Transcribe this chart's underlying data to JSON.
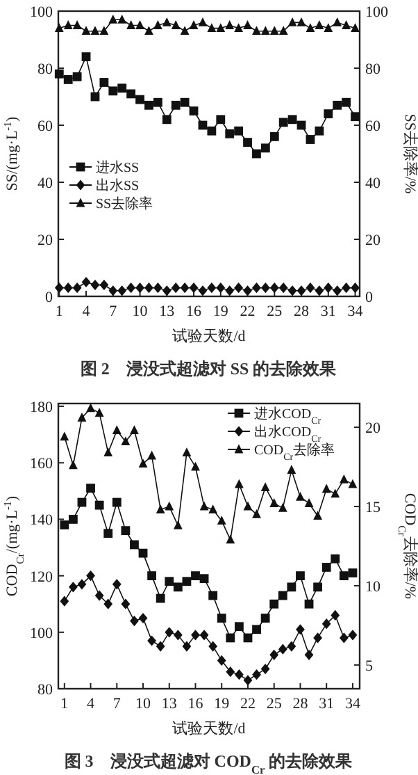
{
  "chart_data": [
    {
      "type": "line",
      "title": "图 2　浸没式超滤对 SS 的去除效果",
      "xlabel": "试验天数/d",
      "ylabel": "SS/(mg·L$^{-1}$)",
      "y2label": "SS去除率/%",
      "x": [
        1,
        2,
        3,
        4,
        5,
        6,
        7,
        8,
        9,
        10,
        11,
        12,
        13,
        14,
        15,
        16,
        17,
        18,
        19,
        20,
        21,
        22,
        23,
        24,
        25,
        26,
        27,
        28,
        29,
        30,
        31,
        32,
        33,
        34
      ],
      "xlim": [
        0.9,
        34.5
      ],
      "xticks": [
        1,
        4,
        7,
        10,
        13,
        16,
        19,
        22,
        25,
        28,
        31,
        34
      ],
      "ylim": [
        0,
        100
      ],
      "yticks": [
        0,
        20,
        40,
        60,
        80,
        100
      ],
      "y2lim": [
        0,
        100
      ],
      "y2ticks": [
        0,
        20,
        40,
        60,
        80,
        100
      ],
      "grid": false,
      "legend": "left",
      "line_style": "solid",
      "series": [
        {
          "name": "进水SS",
          "color": "#111111",
          "marker": "square",
          "values": [
            78,
            76,
            77,
            84,
            70,
            75,
            72,
            73,
            71,
            69,
            67,
            68,
            62,
            67,
            68,
            65,
            60,
            58,
            62,
            57,
            58,
            54,
            50,
            52,
            56,
            61,
            62,
            60,
            55,
            58,
            64,
            67,
            68,
            63
          ]
        },
        {
          "name": "出水SS",
          "color": "#111111",
          "marker": "diamond",
          "values": [
            3,
            3,
            3,
            5,
            4,
            4,
            2,
            2,
            3,
            3,
            3,
            3,
            2,
            3,
            3,
            3,
            2,
            3,
            3,
            2,
            3,
            2,
            3,
            3,
            3,
            3,
            2,
            2,
            3,
            2,
            3,
            2,
            3,
            3
          ]
        },
        {
          "name": "SS去除率",
          "color": "#111111",
          "marker": "triangle",
          "axis": "y2",
          "values": [
            94,
            95,
            95,
            93,
            93,
            93,
            97,
            97,
            95,
            95,
            93,
            95,
            96,
            95,
            93,
            95,
            96,
            94,
            94,
            95,
            94,
            95,
            93,
            93,
            93,
            93,
            96,
            96,
            94,
            95,
            94,
            96,
            95,
            94
          ]
        }
      ]
    },
    {
      "type": "line",
      "title": "图 3　浸没式超滤对 COD$_{Cr}$ 的去除效果",
      "xlabel": "试验天数/d",
      "ylabel": "COD$_{Cr}$/(mg·L$^{-1}$)",
      "y2label": "COD$_{Cr}$去除率/%",
      "x": [
        1,
        2,
        3,
        4,
        5,
        6,
        7,
        8,
        9,
        10,
        11,
        12,
        13,
        14,
        15,
        16,
        17,
        18,
        19,
        20,
        21,
        22,
        23,
        24,
        25,
        26,
        27,
        28,
        29,
        30,
        31,
        32,
        33,
        34
      ],
      "xlim": [
        0.3,
        34.8
      ],
      "xticks": [
        1,
        4,
        7,
        10,
        13,
        16,
        19,
        22,
        25,
        28,
        31,
        34
      ],
      "ylim": [
        80,
        181
      ],
      "yticks": [
        80,
        100,
        120,
        140,
        160,
        180
      ],
      "y2lim": [
        3.5,
        21.5
      ],
      "y2ticks": [
        5,
        10,
        15,
        20
      ],
      "grid": false,
      "legend": "top right",
      "line_style": "solid",
      "series": [
        {
          "name": "进水COD$_{Cr}$",
          "color": "#111111",
          "marker": "square",
          "values": [
            138,
            140,
            146,
            151,
            145,
            135,
            146,
            136,
            131,
            128,
            120,
            112,
            118,
            116,
            118,
            120,
            119,
            113,
            105,
            98,
            102,
            98,
            101,
            105,
            110,
            113,
            116,
            120,
            110,
            116,
            123,
            126,
            120,
            121
          ]
        },
        {
          "name": "出水COD$_{Cr}$",
          "color": "#111111",
          "marker": "diamond",
          "values": [
            111,
            116,
            117,
            120,
            113,
            110,
            117,
            110,
            104,
            105,
            97,
            95,
            100,
            99,
            95,
            99,
            99,
            95,
            90,
            86,
            85,
            83,
            85,
            87,
            92,
            94,
            95,
            101,
            92,
            98,
            103,
            106,
            98,
            99
          ]
        },
        {
          "name": "COD$_{Cr}$去除率",
          "color": "#111111",
          "marker": "triangle",
          "axis": "y2",
          "values": [
            19.4,
            17.6,
            20.6,
            21.2,
            20.9,
            18.4,
            19.8,
            19.1,
            19.8,
            17.7,
            18.2,
            14.8,
            15,
            13.8,
            18.4,
            17.5,
            15,
            14.8,
            14.1,
            12.9,
            16.4,
            15,
            14.5,
            16.2,
            15.2,
            14.9,
            17.3,
            15.6,
            15.2,
            14.4,
            16.1,
            15.8,
            16.7,
            16.4
          ]
        }
      ]
    }
  ]
}
